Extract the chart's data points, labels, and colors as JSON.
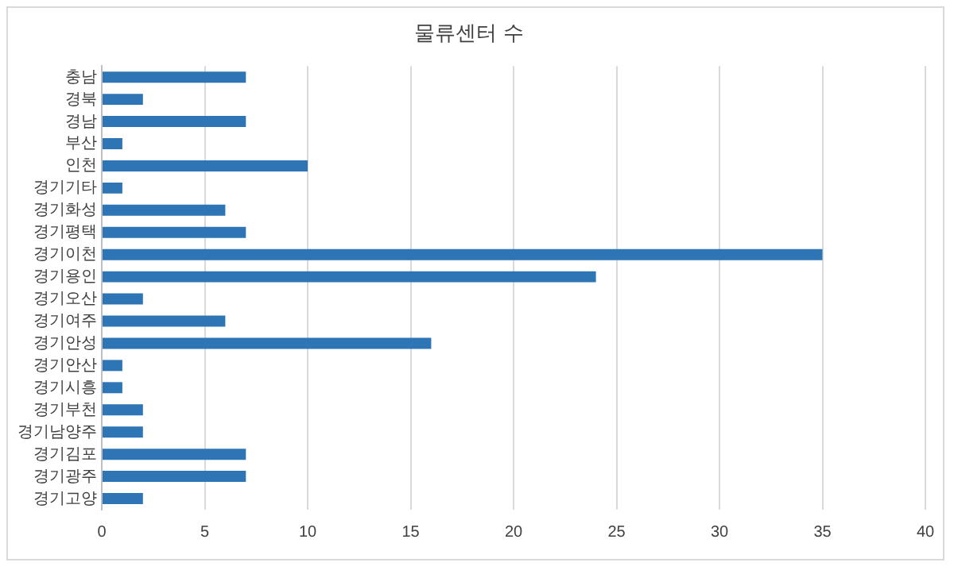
{
  "chart_data": {
    "type": "bar",
    "orientation": "horizontal",
    "title": "물류센터 수",
    "categories": [
      "충남",
      "경북",
      "경남",
      "부산",
      "인천",
      "경기기타",
      "경기화성",
      "경기평택",
      "경기이천",
      "경기용인",
      "경기오산",
      "경기여주",
      "경기안성",
      "경기안산",
      "경기시흥",
      "경기부천",
      "경기남양주",
      "경기김포",
      "경기광주",
      "경기고양"
    ],
    "values": [
      7,
      2,
      7,
      1,
      10,
      1,
      6,
      7,
      35,
      24,
      2,
      6,
      16,
      1,
      1,
      2,
      2,
      7,
      7,
      2
    ],
    "color": "#2e75b6",
    "xlim": [
      0,
      40
    ],
    "xticks": [
      0,
      5,
      10,
      15,
      20,
      25,
      30,
      35,
      40
    ],
    "grid": "x",
    "legend": false
  }
}
